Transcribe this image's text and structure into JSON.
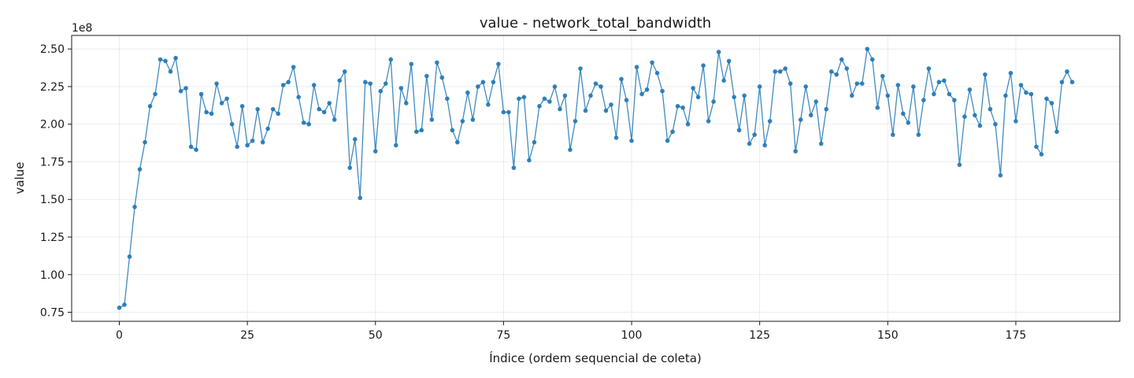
{
  "chart_data": {
    "type": "line",
    "title": "value - network_total_bandwidth",
    "xlabel": "Índice (ordem sequencial de coleta)",
    "ylabel": "value",
    "y_offset_label": "1e8",
    "xlim": [
      -9.3,
      195.3
    ],
    "ylim": [
      0.69,
      2.59
    ],
    "xticks": [
      0,
      25,
      50,
      75,
      100,
      125,
      150,
      175
    ],
    "xtick_labels": [
      "0",
      "25",
      "50",
      "75",
      "100",
      "125",
      "150",
      "175"
    ],
    "yticks": [
      0.75,
      1.0,
      1.25,
      1.5,
      1.75,
      2.0,
      2.25,
      2.5
    ],
    "ytick_labels": [
      "0.75",
      "1.00",
      "1.25",
      "1.50",
      "1.75",
      "2.00",
      "2.25",
      "2.50"
    ],
    "grid": true,
    "line_color": "#1f77b4",
    "series": [
      {
        "values": [
          0.78,
          0.8,
          1.12,
          1.45,
          1.7,
          1.88,
          2.12,
          2.2,
          2.43,
          2.42,
          2.35,
          2.44,
          2.22,
          2.24,
          1.85,
          1.83,
          2.2,
          2.08,
          2.07,
          2.27,
          2.14,
          2.17,
          2.0,
          1.85,
          2.12,
          1.86,
          1.89,
          2.1,
          1.88,
          1.97,
          2.1,
          2.07,
          2.26,
          2.28,
          2.38,
          2.18,
          2.01,
          2.0,
          2.26,
          2.1,
          2.08,
          2.14,
          2.03,
          2.29,
          2.35,
          1.71,
          1.9,
          1.51,
          2.28,
          2.27,
          1.82,
          2.22,
          2.27,
          2.43,
          1.86,
          2.24,
          2.14,
          2.4,
          1.95,
          1.96,
          2.32,
          2.03,
          2.41,
          2.31,
          2.17,
          1.96,
          1.88,
          2.02,
          2.21,
          2.03,
          2.25,
          2.28,
          2.13,
          2.28,
          2.4,
          2.08,
          2.08,
          1.71,
          2.17,
          2.18,
          1.76,
          1.88,
          2.12,
          2.17,
          2.15,
          2.25,
          2.1,
          2.19,
          1.83,
          2.02,
          2.37,
          2.09,
          2.19,
          2.27,
          2.25,
          2.09,
          2.13,
          1.91,
          2.3,
          2.16,
          1.89,
          2.38,
          2.2,
          2.23,
          2.41,
          2.34,
          2.22,
          1.89,
          1.95,
          2.12,
          2.11,
          2.0,
          2.24,
          2.18,
          2.39,
          2.02,
          2.15,
          2.48,
          2.29,
          2.42,
          2.18,
          1.96,
          2.19,
          1.87,
          1.93,
          2.25,
          1.86,
          2.02,
          2.35,
          2.35,
          2.37,
          2.27,
          1.82,
          2.03,
          2.25,
          2.06,
          2.15,
          1.87,
          2.1,
          2.35,
          2.33,
          2.43,
          2.37,
          2.19,
          2.27,
          2.27,
          2.5,
          2.43,
          2.11,
          2.32,
          2.19,
          1.93,
          2.26,
          2.07,
          2.01,
          2.25,
          1.93,
          2.16,
          2.37,
          2.2,
          2.28,
          2.29,
          2.2,
          2.16,
          1.73,
          2.05,
          2.23,
          2.06,
          1.99,
          2.33,
          2.1,
          2.0,
          1.66,
          2.19,
          2.34,
          2.02,
          2.26,
          2.21,
          2.2,
          1.85,
          1.8,
          2.17,
          2.14,
          1.95,
          2.28,
          2.35,
          2.28
        ]
      }
    ]
  }
}
